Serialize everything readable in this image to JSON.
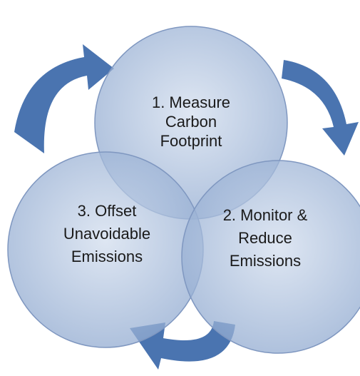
{
  "nodes": [
    {
      "lines": [
        "1. Measure",
        "Carbon",
        "Footprint"
      ]
    },
    {
      "lines": [
        "2. Monitor &",
        "Reduce",
        "Emissions"
      ]
    },
    {
      "lines": [
        "3. Offset",
        "Unavoidable",
        "Emissions"
      ]
    }
  ]
}
